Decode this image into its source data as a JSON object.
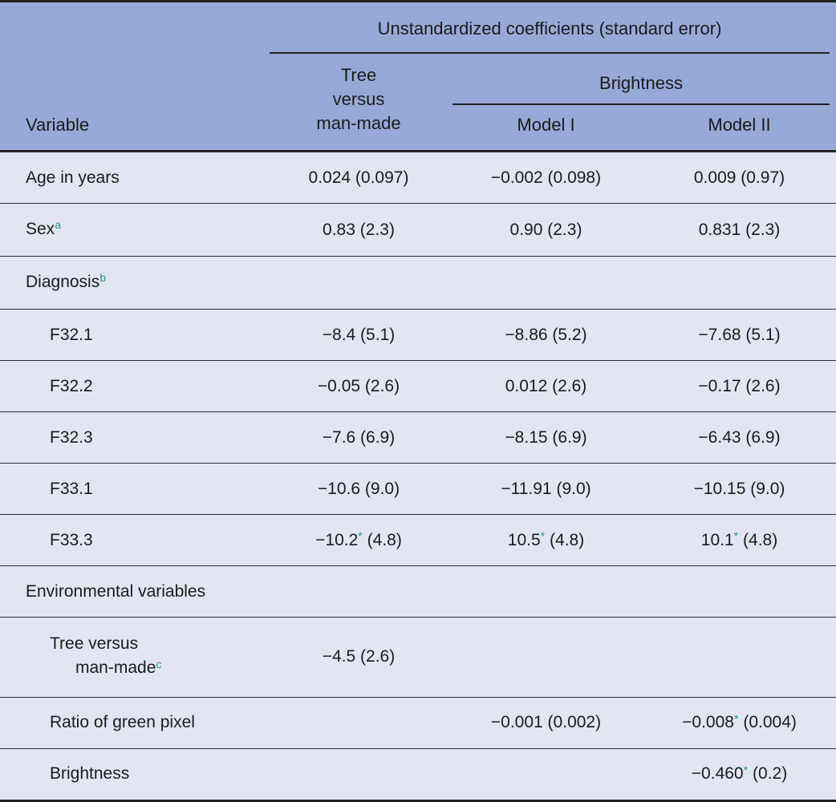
{
  "colors": {
    "header_bg": "#97a9d7",
    "body_bg": "#e2e6f3",
    "accent": "#2e8f85",
    "rule": "#222222"
  },
  "header": {
    "variable": "Variable",
    "group": "Unstandardized coefficients (standard error)",
    "tree": "Tree\nversus\nman-made",
    "brightness": "Brightness",
    "model1": "Model I",
    "model2": "Model II"
  },
  "rows": [
    {
      "label": {
        "lines": [
          {
            "indent": 0,
            "segments": [
              {
                "t": "Age in years"
              }
            ]
          }
        ]
      },
      "cells": [
        [
          {
            "t": "0.024 (0.097)"
          }
        ],
        [
          {
            "t": "−0.002 (0.098)"
          }
        ],
        [
          {
            "t": "0.009 (0.97)"
          }
        ]
      ]
    },
    {
      "label": {
        "lines": [
          {
            "indent": 0,
            "segments": [
              {
                "t": "Sex"
              },
              {
                "t": "a",
                "sup": true
              }
            ]
          }
        ]
      },
      "cells": [
        [
          {
            "t": "0.83 (2.3)"
          }
        ],
        [
          {
            "t": "0.90 (2.3)"
          }
        ],
        [
          {
            "t": "0.831 (2.3)"
          }
        ]
      ]
    },
    {
      "label": {
        "lines": [
          {
            "indent": 0,
            "segments": [
              {
                "t": "Diagnosis"
              },
              {
                "t": "b",
                "sup": true
              }
            ]
          }
        ]
      },
      "cells": [
        [],
        [],
        []
      ]
    },
    {
      "label": {
        "lines": [
          {
            "indent": 1,
            "segments": [
              {
                "t": "F32.1"
              }
            ]
          }
        ]
      },
      "cells": [
        [
          {
            "t": "−8.4 (5.1)"
          }
        ],
        [
          {
            "t": "−8.86 (5.2)"
          }
        ],
        [
          {
            "t": "−7.68 (5.1)"
          }
        ]
      ]
    },
    {
      "label": {
        "lines": [
          {
            "indent": 1,
            "segments": [
              {
                "t": "F32.2"
              }
            ]
          }
        ]
      },
      "cells": [
        [
          {
            "t": "−0.05 (2.6)"
          }
        ],
        [
          {
            "t": "0.012 (2.6)"
          }
        ],
        [
          {
            "t": "−0.17 (2.6)"
          }
        ]
      ]
    },
    {
      "label": {
        "lines": [
          {
            "indent": 1,
            "segments": [
              {
                "t": "F32.3"
              }
            ]
          }
        ]
      },
      "cells": [
        [
          {
            "t": "−7.6 (6.9)"
          }
        ],
        [
          {
            "t": "−8.15 (6.9)"
          }
        ],
        [
          {
            "t": "−6.43 (6.9)"
          }
        ]
      ]
    },
    {
      "label": {
        "lines": [
          {
            "indent": 1,
            "segments": [
              {
                "t": "F33.1"
              }
            ]
          }
        ]
      },
      "cells": [
        [
          {
            "t": "−10.6 (9.0)"
          }
        ],
        [
          {
            "t": "−11.91 (9.0)"
          }
        ],
        [
          {
            "t": "−10.15 (9.0)"
          }
        ]
      ]
    },
    {
      "label": {
        "lines": [
          {
            "indent": 1,
            "segments": [
              {
                "t": "F33.3"
              }
            ]
          }
        ]
      },
      "cells": [
        [
          {
            "t": "−10.2"
          },
          {
            "t": "*",
            "sup": true
          },
          {
            "t": " (4.8)"
          }
        ],
        [
          {
            "t": "10.5"
          },
          {
            "t": "*",
            "sup": true
          },
          {
            "t": " (4.8)"
          }
        ],
        [
          {
            "t": "10.1"
          },
          {
            "t": "*",
            "sup": true
          },
          {
            "t": " (4.8)"
          }
        ]
      ]
    },
    {
      "label": {
        "lines": [
          {
            "indent": 0,
            "segments": [
              {
                "t": "Environmental variables"
              }
            ]
          }
        ]
      },
      "cells": [
        [],
        [],
        []
      ]
    },
    {
      "label": {
        "lines": [
          {
            "indent": 1,
            "segments": [
              {
                "t": "Tree versus"
              }
            ]
          },
          {
            "indent": 2,
            "segments": [
              {
                "t": "man-made"
              },
              {
                "t": "c",
                "sup": true
              }
            ]
          }
        ]
      },
      "cells": [
        [
          {
            "t": "−4.5 (2.6)"
          }
        ],
        [],
        []
      ]
    },
    {
      "label": {
        "lines": [
          {
            "indent": 1,
            "segments": [
              {
                "t": "Ratio of green pixel"
              }
            ]
          }
        ]
      },
      "cells": [
        [],
        [
          {
            "t": "−0.001 (0.002)"
          }
        ],
        [
          {
            "t": "−0.008"
          },
          {
            "t": "*",
            "sup": true
          },
          {
            "t": " (0.004)"
          }
        ]
      ]
    },
    {
      "label": {
        "lines": [
          {
            "indent": 1,
            "segments": [
              {
                "t": "Brightness"
              }
            ]
          }
        ]
      },
      "cells": [
        [],
        [],
        [
          {
            "t": "−0.460"
          },
          {
            "t": "*",
            "sup": true
          },
          {
            "t": " (0.2)"
          }
        ]
      ]
    }
  ]
}
